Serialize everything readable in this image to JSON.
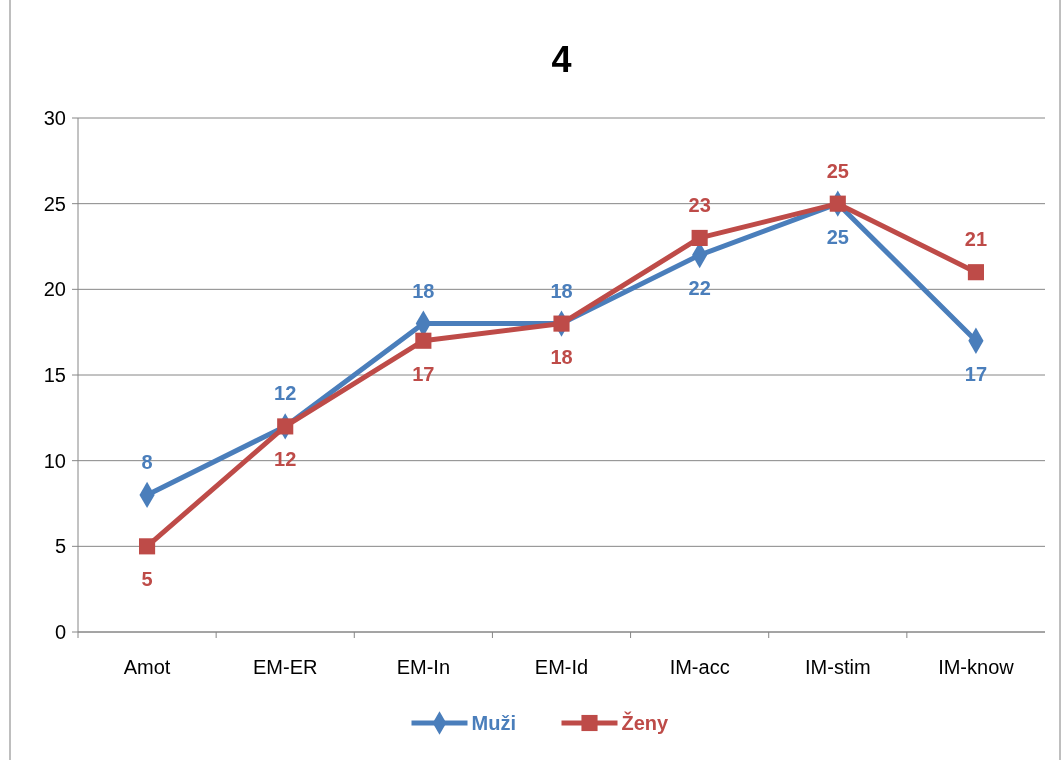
{
  "chart_data": {
    "type": "line",
    "title": "4",
    "categories": [
      "Amot",
      "EM-ER",
      "EM-In",
      "EM-Id",
      "IM-acc",
      "IM-stim",
      "IM-know"
    ],
    "series": [
      {
        "name": "Muži",
        "color": "#4a7ebb",
        "marker": "diamond",
        "values": [
          8,
          12,
          18,
          18,
          22,
          25,
          17
        ]
      },
      {
        "name": "Ženy",
        "color": "#be4b48",
        "marker": "square",
        "values": [
          5,
          12,
          17,
          18,
          23,
          25,
          21
        ]
      }
    ],
    "ylim": [
      0,
      30
    ],
    "yticks": [
      0,
      5,
      10,
      15,
      20,
      25,
      30
    ],
    "grid": "y",
    "legend": "bottom",
    "data_labels": true
  }
}
